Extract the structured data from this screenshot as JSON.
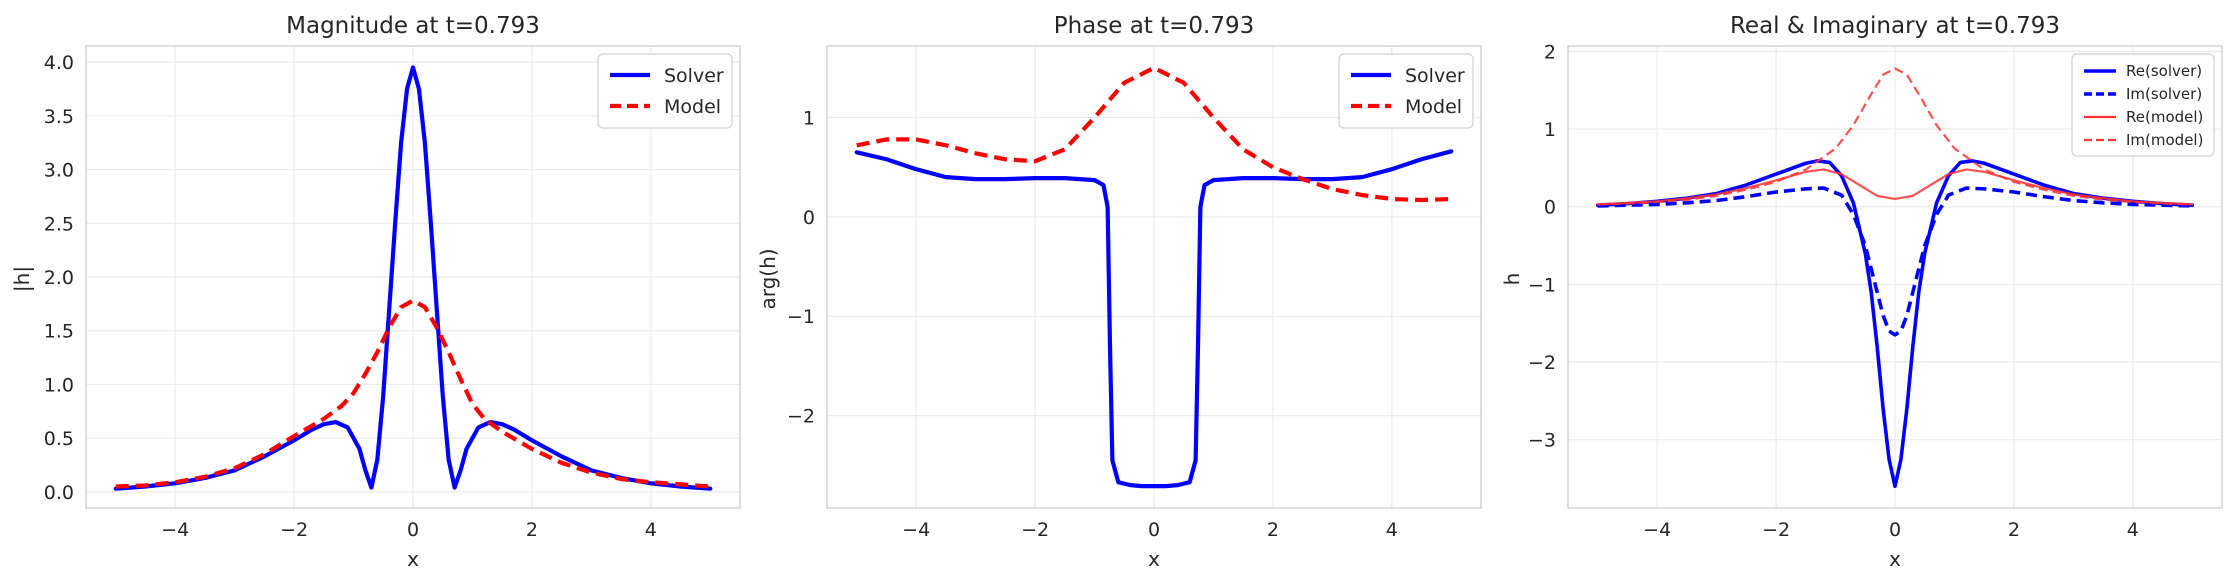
{
  "chart_data": [
    {
      "type": "line",
      "title": "Magnitude at t=0.793",
      "xlabel": "x",
      "ylabel": "|h|",
      "xlim": [
        -5.5,
        5.5
      ],
      "ylim": [
        -0.15,
        4.15
      ],
      "xticks": [
        -4,
        -2,
        0,
        2,
        4
      ],
      "yticks": [
        0.0,
        0.5,
        1.0,
        1.5,
        2.0,
        2.5,
        3.0,
        3.5,
        4.0
      ],
      "ytick_labels": [
        "0.0",
        "0.5",
        "1.0",
        "1.5",
        "2.0",
        "2.5",
        "3.0",
        "3.5",
        "4.0"
      ],
      "grid": true,
      "legend_position": "top-right",
      "series": [
        {
          "name": "Solver",
          "color": "#0000ff",
          "style": "solid",
          "x": [
            -5,
            -4.5,
            -4,
            -3.5,
            -3,
            -2.5,
            -2,
            -1.7,
            -1.5,
            -1.3,
            -1.1,
            -0.9,
            -0.8,
            -0.7,
            -0.6,
            -0.5,
            -0.4,
            -0.3,
            -0.2,
            -0.1,
            0,
            0.1,
            0.2,
            0.3,
            0.4,
            0.5,
            0.6,
            0.7,
            0.8,
            0.9,
            1.1,
            1.3,
            1.5,
            1.7,
            2,
            2.5,
            3,
            3.5,
            4,
            4.5,
            5
          ],
          "y": [
            0.03,
            0.05,
            0.08,
            0.13,
            0.2,
            0.33,
            0.48,
            0.58,
            0.63,
            0.65,
            0.6,
            0.4,
            0.2,
            0.04,
            0.3,
            0.9,
            1.7,
            2.5,
            3.25,
            3.75,
            3.95,
            3.75,
            3.25,
            2.5,
            1.7,
            0.9,
            0.3,
            0.04,
            0.2,
            0.4,
            0.6,
            0.65,
            0.63,
            0.58,
            0.48,
            0.33,
            0.2,
            0.13,
            0.08,
            0.05,
            0.03
          ]
        },
        {
          "name": "Model",
          "color": "#ff0000",
          "style": "dashed",
          "x": [
            -5,
            -4.5,
            -4,
            -3.5,
            -3,
            -2.5,
            -2,
            -1.5,
            -1.2,
            -1,
            -0.8,
            -0.6,
            -0.4,
            -0.2,
            0,
            0.2,
            0.4,
            0.6,
            0.8,
            1,
            1.2,
            1.5,
            2,
            2.5,
            3,
            3.5,
            4,
            4.5,
            5
          ],
          "y": [
            0.05,
            0.06,
            0.09,
            0.14,
            0.22,
            0.35,
            0.52,
            0.68,
            0.8,
            0.92,
            1.1,
            1.3,
            1.53,
            1.72,
            1.78,
            1.72,
            1.53,
            1.3,
            1.05,
            0.82,
            0.68,
            0.56,
            0.4,
            0.27,
            0.18,
            0.12,
            0.09,
            0.07,
            0.05
          ]
        }
      ]
    },
    {
      "type": "line",
      "title": "Phase at t=0.793",
      "xlabel": "x",
      "ylabel": "arg(h)",
      "xlim": [
        -5.5,
        5.5
      ],
      "ylim": [
        -2.93,
        1.72
      ],
      "xticks": [
        -4,
        -2,
        0,
        2,
        4
      ],
      "yticks": [
        -2,
        -1,
        0,
        1
      ],
      "ytick_labels": [
        "−2",
        "−1",
        "0",
        "1"
      ],
      "grid": true,
      "legend_position": "top-right",
      "series": [
        {
          "name": "Solver",
          "color": "#0000ff",
          "style": "solid",
          "x": [
            -5,
            -4.5,
            -4,
            -3.5,
            -3,
            -2.5,
            -2,
            -1.5,
            -1,
            -0.85,
            -0.78,
            -0.74,
            -0.7,
            -0.6,
            -0.4,
            -0.2,
            0,
            0.2,
            0.4,
            0.6,
            0.7,
            0.74,
            0.78,
            0.85,
            1,
            1.5,
            2,
            2.5,
            3,
            3.5,
            4,
            4.5,
            5
          ],
          "y": [
            0.65,
            0.58,
            0.48,
            0.4,
            0.38,
            0.38,
            0.39,
            0.39,
            0.37,
            0.32,
            0.1,
            -1.3,
            -2.45,
            -2.67,
            -2.7,
            -2.71,
            -2.71,
            -2.71,
            -2.7,
            -2.67,
            -2.45,
            -1.3,
            0.1,
            0.32,
            0.37,
            0.39,
            0.39,
            0.38,
            0.38,
            0.4,
            0.48,
            0.58,
            0.66
          ]
        },
        {
          "name": "Model",
          "color": "#ff0000",
          "style": "dashed",
          "x": [
            -5,
            -4.5,
            -4,
            -3.5,
            -3,
            -2.5,
            -2,
            -1.5,
            -1,
            -0.5,
            0,
            0.5,
            1,
            1.5,
            2,
            2.5,
            3,
            3.5,
            4,
            4.5,
            5
          ],
          "y": [
            0.72,
            0.78,
            0.78,
            0.72,
            0.64,
            0.58,
            0.56,
            0.68,
            1.0,
            1.35,
            1.5,
            1.35,
            1.0,
            0.68,
            0.5,
            0.38,
            0.28,
            0.22,
            0.18,
            0.17,
            0.18
          ]
        }
      ]
    },
    {
      "type": "line",
      "title": "Real & Imaginary at t=0.793",
      "xlabel": "x",
      "ylabel": "h",
      "xlim": [
        -5.5,
        5.5
      ],
      "ylim": [
        -3.88,
        2.07
      ],
      "xticks": [
        -4,
        -2,
        0,
        2,
        4
      ],
      "yticks": [
        -3,
        -2,
        -1,
        0,
        1,
        2
      ],
      "ytick_labels": [
        "−3",
        "−2",
        "−1",
        "0",
        "1",
        "2"
      ],
      "grid": true,
      "legend_position": "top-right",
      "series": [
        {
          "name": "Re(solver)",
          "color": "#0000ff",
          "style": "solid",
          "x": [
            -5,
            -4.5,
            -4,
            -3.5,
            -3,
            -2.5,
            -2,
            -1.5,
            -1.3,
            -1.1,
            -0.9,
            -0.7,
            -0.5,
            -0.4,
            -0.3,
            -0.2,
            -0.1,
            0,
            0.1,
            0.2,
            0.3,
            0.4,
            0.5,
            0.7,
            0.9,
            1.1,
            1.3,
            1.5,
            2,
            2.5,
            3,
            3.5,
            4,
            4.5,
            5
          ],
          "y": [
            0.02,
            0.04,
            0.07,
            0.11,
            0.17,
            0.28,
            0.42,
            0.56,
            0.59,
            0.57,
            0.4,
            0.05,
            -0.6,
            -1.1,
            -1.8,
            -2.6,
            -3.25,
            -3.6,
            -3.25,
            -2.6,
            -1.8,
            -1.1,
            -0.6,
            0.05,
            0.4,
            0.57,
            0.59,
            0.56,
            0.42,
            0.28,
            0.17,
            0.11,
            0.07,
            0.04,
            0.02
          ]
        },
        {
          "name": "Im(solver)",
          "color": "#0000ff",
          "style": "dashed",
          "x": [
            -5,
            -4.5,
            -4,
            -3.5,
            -3,
            -2.5,
            -2,
            -1.5,
            -1.2,
            -0.9,
            -0.7,
            -0.5,
            -0.35,
            -0.2,
            -0.1,
            0,
            0.1,
            0.2,
            0.35,
            0.5,
            0.7,
            0.9,
            1.2,
            1.5,
            2,
            2.5,
            3,
            3.5,
            4,
            4.5,
            5
          ],
          "y": [
            0.01,
            0.02,
            0.03,
            0.05,
            0.08,
            0.13,
            0.19,
            0.23,
            0.24,
            0.15,
            -0.1,
            -0.5,
            -0.95,
            -1.4,
            -1.6,
            -1.65,
            -1.6,
            -1.4,
            -0.95,
            -0.5,
            -0.1,
            0.15,
            0.24,
            0.23,
            0.19,
            0.13,
            0.08,
            0.05,
            0.03,
            0.02,
            0.01
          ]
        },
        {
          "name": "Re(model)",
          "color": "#ff3333",
          "style": "solid",
          "x": [
            -5,
            -4.5,
            -4,
            -3.5,
            -3,
            -2.5,
            -2,
            -1.5,
            -1.2,
            -0.9,
            -0.6,
            -0.3,
            0,
            0.3,
            0.6,
            0.9,
            1.2,
            1.5,
            2,
            2.5,
            3,
            3.5,
            4,
            4.5,
            5
          ],
          "y": [
            0.03,
            0.05,
            0.07,
            0.11,
            0.16,
            0.24,
            0.34,
            0.45,
            0.48,
            0.42,
            0.28,
            0.14,
            0.1,
            0.14,
            0.28,
            0.42,
            0.48,
            0.45,
            0.34,
            0.24,
            0.16,
            0.11,
            0.07,
            0.05,
            0.03
          ]
        },
        {
          "name": "Im(model)",
          "color": "#ff3333",
          "style": "dashed",
          "x": [
            -5,
            -4.5,
            -4,
            -3.5,
            -3,
            -2.5,
            -2,
            -1.5,
            -1,
            -0.7,
            -0.4,
            -0.2,
            0,
            0.2,
            0.4,
            0.7,
            1,
            1.5,
            2,
            2.5,
            3,
            3.5,
            4,
            4.5,
            5
          ],
          "y": [
            0.03,
            0.04,
            0.06,
            0.09,
            0.14,
            0.22,
            0.32,
            0.48,
            0.75,
            1.05,
            1.45,
            1.7,
            1.78,
            1.7,
            1.45,
            1.05,
            0.75,
            0.48,
            0.32,
            0.22,
            0.14,
            0.09,
            0.06,
            0.04,
            0.03
          ]
        }
      ]
    }
  ]
}
